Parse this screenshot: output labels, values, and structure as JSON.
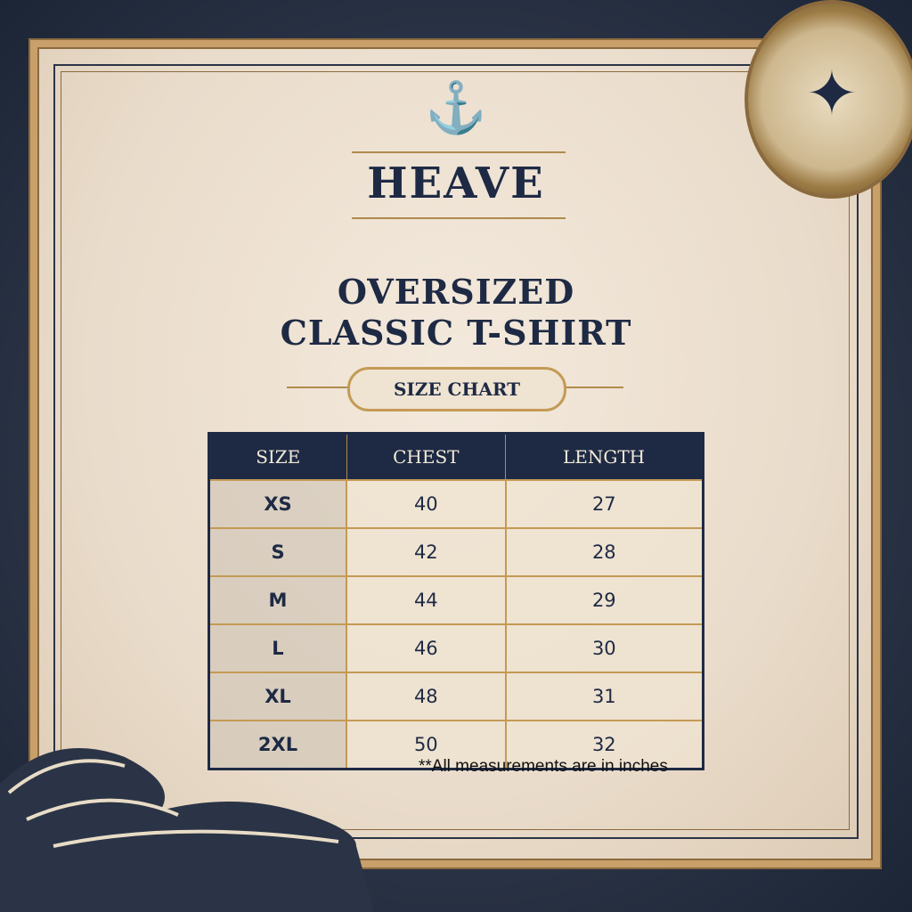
{
  "brand": {
    "name": "HEAVE",
    "logo_icon": "anchor-icon"
  },
  "product": {
    "line1": "OVERSIZED",
    "line2": "CLASSIC T-SHIRT"
  },
  "badge": {
    "label": "SIZE CHART"
  },
  "table": {
    "headers": [
      "SIZE",
      "CHEST",
      "LENGTH"
    ],
    "rows": [
      [
        "XS",
        "40",
        "27"
      ],
      [
        "S",
        "42",
        "28"
      ],
      [
        "M",
        "44",
        "29"
      ],
      [
        "L",
        "46",
        "30"
      ],
      [
        "XL",
        "48",
        "31"
      ],
      [
        "2XL",
        "50",
        "32"
      ]
    ]
  },
  "note": "**All measurements are in inches",
  "colors": {
    "navy": "#1e2a44",
    "gold": "#c49a55",
    "paper": "#efe4d2"
  }
}
